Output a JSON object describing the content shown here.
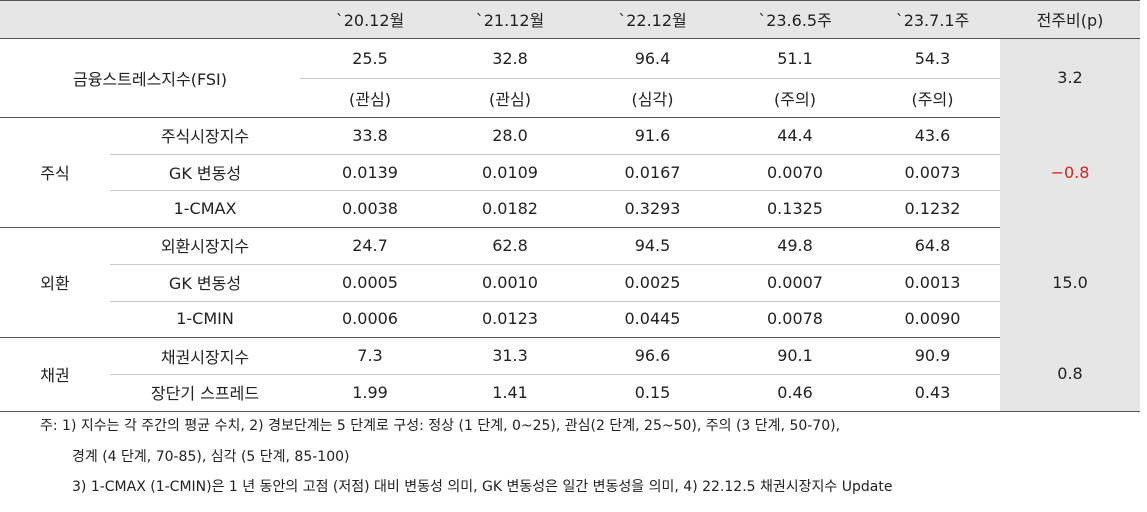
{
  "header": {
    "columns": [
      "`20.12월",
      "`21.12월",
      "`22.12월",
      "`23.6.5주",
      "`23.7.1주",
      "전주비(p)"
    ]
  },
  "fsi": {
    "label": "금융스트레스지수(FSI)",
    "values": [
      "25.5",
      "32.8",
      "96.4",
      "51.1",
      "54.3"
    ],
    "levels": [
      "(관심)",
      "(관심)",
      "(심각)",
      "(주의)",
      "(주의)"
    ],
    "change": "3.2"
  },
  "groups": [
    {
      "name": "주식",
      "change": "−0.8",
      "rows": [
        {
          "label": "주식시장지수",
          "values": [
            "33.8",
            "28.0",
            "91.6",
            "44.4",
            "43.6"
          ]
        },
        {
          "label": "GK 변동성",
          "values": [
            "0.0139",
            "0.0109",
            "0.0167",
            "0.0070",
            "0.0073"
          ]
        },
        {
          "label": "1-CMAX",
          "values": [
            "0.0038",
            "0.0182",
            "0.3293",
            "0.1325",
            "0.1232"
          ]
        }
      ]
    },
    {
      "name": "외환",
      "change": "15.0",
      "rows": [
        {
          "label": "외환시장지수",
          "values": [
            "24.7",
            "62.8",
            "94.5",
            "49.8",
            "64.8"
          ]
        },
        {
          "label": "GK 변동성",
          "values": [
            "0.0005",
            "0.0010",
            "0.0025",
            "0.0007",
            "0.0013"
          ]
        },
        {
          "label": "1-CMIN",
          "values": [
            "0.0006",
            "0.0123",
            "0.0445",
            "0.0078",
            "0.0090"
          ]
        }
      ]
    },
    {
      "name": "채권",
      "change": "0.8",
      "rows": [
        {
          "label": "채권시장지수",
          "values": [
            "7.3",
            "31.3",
            "96.6",
            "90.1",
            "90.9"
          ]
        },
        {
          "label": "장단기 스프레드",
          "values": [
            "1.99",
            "1.41",
            "0.15",
            "0.46",
            "0.43"
          ]
        }
      ]
    }
  ],
  "notes": [
    "주: 1) 지수는 각 주간의 평균 수치, 2) 경보단계는 5 단계로 구성: 정상 (1 단계, 0~25), 관심(2 단계, 25~50), 주의 (3 단계, 50-70),",
    "경계 (4 단계, 70-85), 심각 (5 단계, 85-100)",
    "3) 1-CMAX (1-CMIN)은 1 년 동안의 고점 (저점) 대비 변동성 의미, GK 변동성은 일간 변동성을 의미, 4) 22.12.5 채권시장지수 Update"
  ]
}
